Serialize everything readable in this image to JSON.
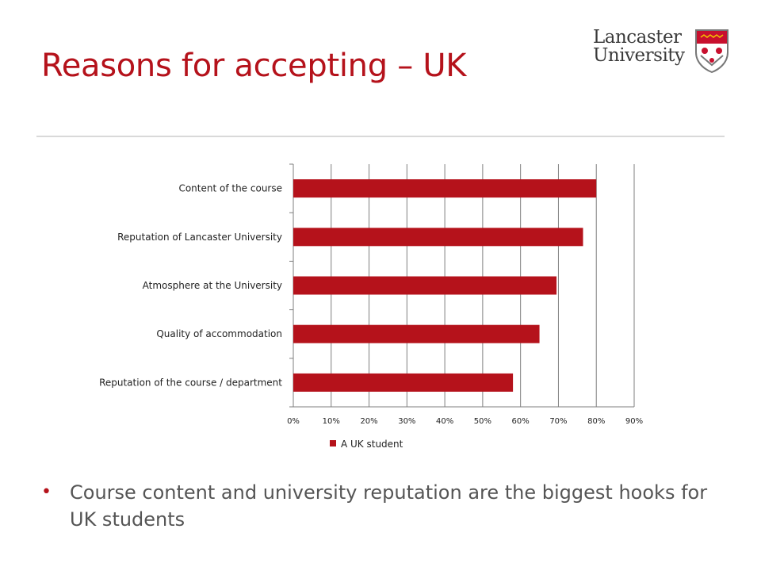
{
  "slide": {
    "title": "Reasons for accepting – UK",
    "logo": {
      "line1": "Lancaster",
      "line2": "University",
      "crest_icon": "university-crest-icon"
    },
    "bullet": {
      "marker": "•",
      "text": "Course content and university reputation are the biggest hooks for UK students"
    }
  },
  "colors": {
    "title": "#b5121b",
    "bar": "#b5121b",
    "grid": "#7f7f7f",
    "divider": "#d9d9d9",
    "bullet_text": "#555555"
  },
  "chart_data": {
    "type": "bar",
    "orientation": "horizontal",
    "categories": [
      "Content of the course",
      "Reputation of Lancaster University",
      "Atmosphere at the University",
      "Quality of accommodation",
      "Reputation of the course / department"
    ],
    "series": [
      {
        "name": "A UK student",
        "values": [
          0.8,
          0.765,
          0.695,
          0.65,
          0.58
        ],
        "color": "#b5121b"
      }
    ],
    "xlim": [
      0,
      0.9
    ],
    "xticks": [
      0,
      0.1,
      0.2,
      0.3,
      0.4,
      0.5,
      0.6,
      0.7,
      0.8,
      0.9
    ],
    "xtick_labels": [
      "0%",
      "10%",
      "20%",
      "30%",
      "40%",
      "50%",
      "60%",
      "70%",
      "80%",
      "90%"
    ],
    "grid": "vertical",
    "legend_position": "bottom-left"
  }
}
